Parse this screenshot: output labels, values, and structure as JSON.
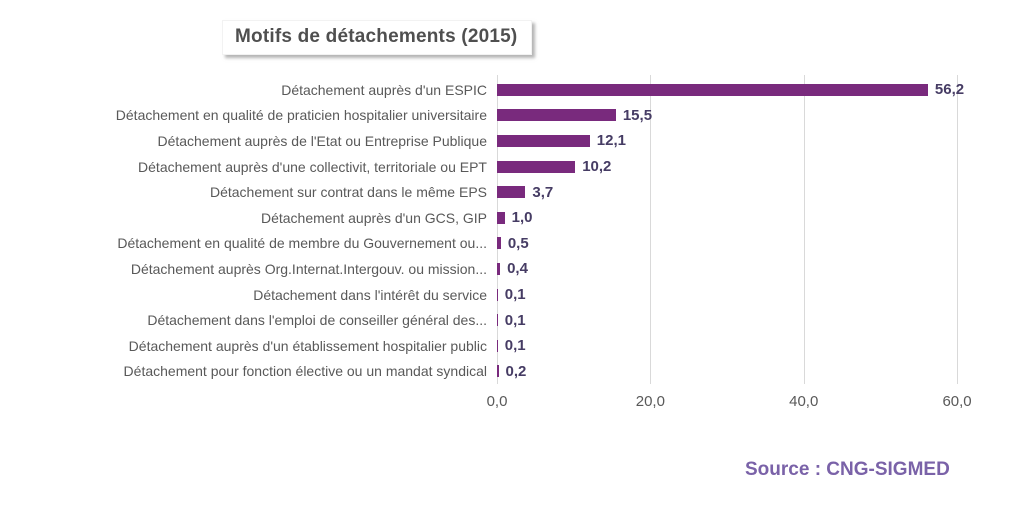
{
  "title": "Motifs de détachements (2015)",
  "source": "Source : CNG-SIGMED",
  "colors": {
    "bar": "#792a7d",
    "value_label": "#463c64",
    "category_label": "#595959",
    "tick_label": "#595959",
    "gridline": "#d9d9d9",
    "title_text": "#4f4f4f",
    "source_text": "#7a62a8"
  },
  "chart_data": {
    "type": "bar",
    "orientation": "horizontal",
    "title": "Motifs de détachements (2015)",
    "categories": [
      "Détachement auprès d'un ESPIC",
      "Détachement en qualité de praticien hospitalier universitaire",
      "Détachement auprès de l'Etat ou Entreprise Publique",
      "Détachement auprès d'une collectivit, territoriale ou EPT",
      "Détachement sur contrat dans le même EPS",
      "Détachement auprès d'un GCS, GIP",
      "Détachement en qualité de membre du Gouvernement ou...",
      "Détachement auprès Org.Internat.Intergouv. ou mission...",
      "Détachement dans l'intérêt du service",
      "Détachement dans l'emploi de conseiller général des...",
      "Détachement auprès d'un établissement hospitalier public",
      "Détachement pour fonction élective ou un mandat syndical"
    ],
    "values": [
      56.2,
      15.5,
      12.1,
      10.2,
      3.7,
      1.0,
      0.5,
      0.4,
      0.1,
      0.1,
      0.1,
      0.2
    ],
    "value_labels": [
      "56,2",
      "15,5",
      "12,1",
      "10,2",
      "3,7",
      "1,0",
      "0,5",
      "0,4",
      "0,1",
      "0,1",
      "0,1",
      "0,2"
    ],
    "x_tick_values": [
      0,
      20,
      40,
      60
    ],
    "x_tick_labels": [
      "0,0",
      "20,0",
      "40,0",
      "60,0"
    ],
    "xlim": [
      0,
      65.6
    ],
    "grid": "vertical-only",
    "legend": "none"
  }
}
